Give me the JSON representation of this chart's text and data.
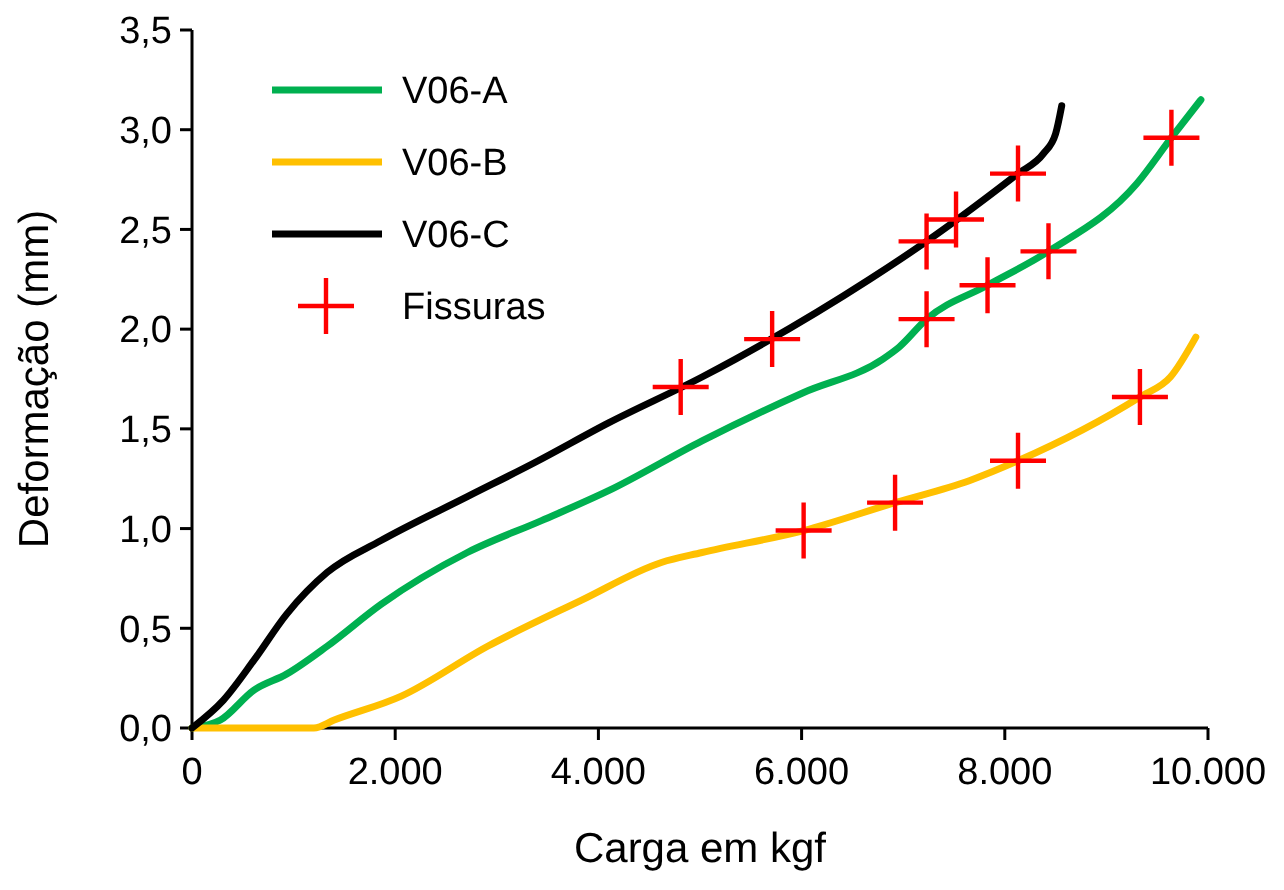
{
  "chart_data": {
    "type": "line",
    "xlabel": "Carga em kgf",
    "ylabel": "Deformação (mm)",
    "xlim": [
      0,
      10000
    ],
    "ylim": [
      0,
      3.5
    ],
    "xticks": [
      0,
      {
        "value": 2000,
        "label": "2.000"
      },
      {
        "value": 4000,
        "label": "4.000"
      },
      {
        "value": 6000,
        "label": "6.000"
      },
      {
        "value": 8000,
        "label": "8.000"
      },
      {
        "value": 10000,
        "label": "10.000"
      }
    ],
    "yticks": [
      {
        "value": 0,
        "label": "0,0"
      },
      {
        "value": 0.5,
        "label": "0,5"
      },
      {
        "value": 1,
        "label": "1,0"
      },
      {
        "value": 1.5,
        "label": "1,5"
      },
      {
        "value": 2,
        "label": "2,0"
      },
      {
        "value": 2.5,
        "label": "2,5"
      },
      {
        "value": 3,
        "label": "3,0"
      },
      {
        "value": 3.5,
        "label": "3,5"
      }
    ],
    "grid": false,
    "legend": "top left",
    "marker": "none",
    "series": [
      {
        "name": "V06-A",
        "color": "#00b050",
        "x": [
          0,
          280,
          610,
          930,
          1330,
          1860,
          2710,
          3440,
          4100,
          5020,
          6010,
          6800,
          6960,
          7230,
          7830,
          8430,
          9300,
          9640,
          9930
        ],
        "values": [
          0,
          0.04,
          0.19,
          0.27,
          0.41,
          0.62,
          0.88,
          1.04,
          1.19,
          1.44,
          1.68,
          1.85,
          1.91,
          2.05,
          2.22,
          2.39,
          2.73,
          2.96,
          3.15
        ]
      },
      {
        "name": "V06-B",
        "color": "#ffc000",
        "x": [
          0,
          1200,
          1400,
          2060,
          2910,
          3830,
          4620,
          5020,
          6020,
          6920,
          7650,
          8130,
          9330,
          9630,
          9880
        ],
        "values": [
          0,
          0,
          0.04,
          0.16,
          0.41,
          0.64,
          0.83,
          0.88,
          0.99,
          1.13,
          1.24,
          1.34,
          1.66,
          1.76,
          1.96
        ]
      },
      {
        "name": "V06-C",
        "color": "#000000",
        "x": [
          0,
          310,
          610,
          930,
          1330,
          1860,
          2710,
          3370,
          4100,
          5020,
          5350,
          6670,
          7230,
          8130,
          8380,
          8500,
          8560
        ],
        "values": [
          0,
          0.14,
          0.34,
          0.57,
          0.78,
          0.94,
          1.16,
          1.33,
          1.53,
          1.76,
          1.85,
          2.25,
          2.44,
          2.78,
          2.88,
          2.98,
          3.12
        ]
      },
      {
        "name": "Fissuras",
        "type": "scatter",
        "marker": "cross",
        "color": "#ff0000",
        "x": [
          4810,
          5710,
          6020,
          6920,
          7230,
          7230,
          7520,
          7830,
          8130,
          8130,
          8430,
          9330,
          9640
        ],
        "values": [
          1.71,
          1.95,
          0.99,
          1.13,
          2.05,
          2.44,
          2.55,
          2.22,
          1.34,
          2.78,
          2.39,
          1.66,
          2.96
        ]
      }
    ]
  }
}
